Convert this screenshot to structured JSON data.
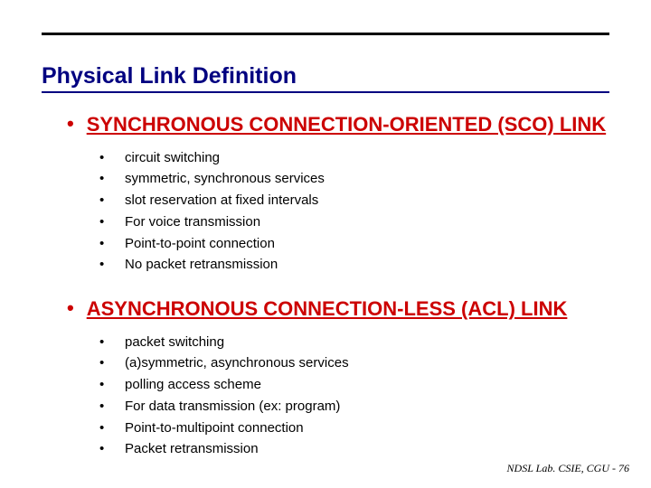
{
  "title": "Physical Link Definition",
  "colors": {
    "title_color": "#000080",
    "heading_color": "#cc0000",
    "text_color": "#000000",
    "rule_color": "#000000",
    "background": "#ffffff"
  },
  "typography": {
    "title_fontsize": 25,
    "heading_fontsize": 22,
    "item_fontsize": 15,
    "footer_fontsize": 12,
    "title_weight": "bold",
    "heading_weight": "bold"
  },
  "sections": [
    {
      "heading": "SYNCHRONOUS CONNECTION-ORIENTED (SCO) LINK",
      "items": [
        "circuit switching",
        "symmetric, synchronous services",
        "slot reservation at fixed intervals",
        "For voice transmission",
        "Point-to-point connection",
        "No packet retransmission"
      ]
    },
    {
      "heading": "ASYNCHRONOUS CONNECTION-LESS (ACL) LINK",
      "items": [
        "packet switching",
        "(a)symmetric, asynchronous services",
        "polling access scheme",
        "For data transmission (ex: program)",
        "Point-to-multipoint connection",
        "Packet retransmission"
      ]
    }
  ],
  "footer": "NDSL Lab. CSIE, CGU - 76",
  "bullet_glyph": "•"
}
